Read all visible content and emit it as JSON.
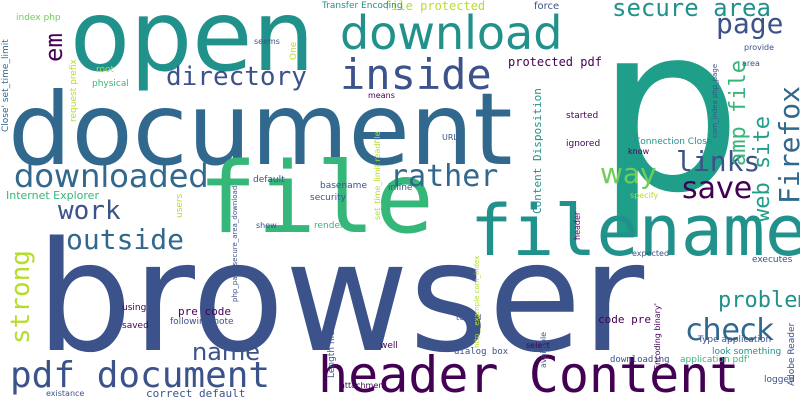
{
  "background": "#ffffff",
  "palette": {
    "dark_purple": "#440154",
    "indigo": "#3b528b",
    "slate_blue": "#31688e",
    "blue_teal": "#21918c",
    "teal": "#1f9e89",
    "green": "#35b779",
    "light_green": "#6ece58",
    "yellow_green": "#b5de2b",
    "gray_teal": "#8ab4b0"
  },
  "words": [
    {
      "text": "browser",
      "color": "#3b528b"
    },
    {
      "text": "document",
      "color": "#31688e"
    },
    {
      "text": "p",
      "color": "#1f9e89"
    },
    {
      "text": "open",
      "color": "#21918c"
    },
    {
      "text": "file",
      "color": "#35b779"
    },
    {
      "text": "filename",
      "color": "#21918c"
    },
    {
      "text": "header Content",
      "color": "#440154"
    },
    {
      "text": "download",
      "color": "#21918c"
    },
    {
      "text": "inside",
      "color": "#3b528b"
    },
    {
      "text": "pdf document",
      "color": "#3b528b"
    },
    {
      "text": "directory",
      "color": "#3b528b"
    },
    {
      "text": "downloaded",
      "color": "#31688e"
    },
    {
      "text": "outside",
      "color": "#31688e"
    },
    {
      "text": "save",
      "color": "#440154"
    },
    {
      "text": "rather",
      "color": "#31688e"
    },
    {
      "text": "links",
      "color": "#3b528b"
    },
    {
      "text": "check",
      "color": "#31688e"
    },
    {
      "text": "way",
      "color": "#6ece58"
    },
    {
      "text": "page",
      "color": "#3b528b"
    },
    {
      "text": "work",
      "color": "#3b528b"
    },
    {
      "text": "secure area",
      "color": "#21918c"
    },
    {
      "text": "Firefox",
      "color": "#31688e"
    },
    {
      "text": "web site",
      "color": "#1f9e89"
    },
    {
      "text": "amp file",
      "color": "#35b779"
    },
    {
      "text": "em",
      "color": "#440154"
    },
    {
      "text": "strong",
      "color": "#b5de2b"
    },
    {
      "text": "name",
      "color": "#3b528b"
    },
    {
      "text": "problem",
      "color": "#21918c"
    },
    {
      "text": "file protected",
      "color": "#b5de2b"
    },
    {
      "text": "protected pdf",
      "color": "#440154"
    },
    {
      "text": "Transfer Encoding",
      "color": "#21918c"
    },
    {
      "text": "force",
      "color": "#3b528b"
    },
    {
      "text": "Content Disposition",
      "color": "#21918c"
    },
    {
      "text": "index php",
      "color": "#6ece58"
    },
    {
      "text": "Close' set_time_limit",
      "color": "#31688e"
    },
    {
      "text": "request prefix",
      "color": "#b5de2b"
    },
    {
      "text": "Internet Explorer",
      "color": "#35b779"
    },
    {
      "text": "default",
      "color": "#3b528b"
    },
    {
      "text": "basename",
      "color": "#3b528b"
    },
    {
      "text": "security",
      "color": "#3b528b"
    },
    {
      "text": "inline",
      "color": "#3b528b"
    },
    {
      "text": "Length filesize",
      "color": "#3b528b"
    },
    {
      "text": "pre code",
      "color": "#440154"
    },
    {
      "text": "code pre",
      "color": "#440154"
    },
    {
      "text": "correct default",
      "color": "#3b528b"
    },
    {
      "text": "following note",
      "color": "#3b528b"
    },
    {
      "text": "dialog box",
      "color": "#3b528b"
    },
    {
      "text": "Connection Close",
      "color": "#21918c"
    },
    {
      "text": "Adobe Reader",
      "color": "#3b528b"
    },
    {
      "text": "Type application",
      "color": "#3b528b"
    },
    {
      "text": "application pdf'",
      "color": "#35b779"
    },
    {
      "text": "look something",
      "color": "#21918c"
    },
    {
      "text": "downloading",
      "color": "#3b528b"
    },
    {
      "text": "executes",
      "color": "#3b528b"
    },
    {
      "text": "logged",
      "color": "#3b528b"
    },
    {
      "text": "started",
      "color": "#440154"
    },
    {
      "text": "ignored",
      "color": "#440154"
    },
    {
      "text": "know",
      "color": "#440154"
    },
    {
      "text": "means",
      "color": "#440154"
    },
    {
      "text": "seems",
      "color": "#3b528b"
    },
    {
      "text": "One",
      "color": "#b5de2b"
    },
    {
      "text": "root",
      "color": "#b5de2b"
    },
    {
      "text": "physical",
      "color": "#35b779"
    },
    {
      "text": "provide",
      "color": "#3b528b"
    },
    {
      "text": "area",
      "color": "#3b528b"
    },
    {
      "text": "users",
      "color": "#b5de2b"
    },
    {
      "text": "using",
      "color": "#440154"
    },
    {
      "text": "saved",
      "color": "#440154"
    },
    {
      "text": "show",
      "color": "#3b528b"
    },
    {
      "text": "render",
      "color": "#35b779"
    },
    {
      "text": "well",
      "color": "#440154"
    },
    {
      "text": "select",
      "color": "#440154"
    },
    {
      "text": "tested",
      "color": "#3b528b"
    },
    {
      "text": "attachment",
      "color": "#440154"
    },
    {
      "text": "existance",
      "color": "#3b528b"
    },
    {
      "text": "URL",
      "color": "#3b528b"
    },
    {
      "text": "specify",
      "color": "#b5de2b"
    },
    {
      "text": "expected",
      "color": "#3b528b"
    },
    {
      "text": "available",
      "color": "#3b528b"
    },
    {
      "text": "header",
      "color": "#440154"
    },
    {
      "text": "Encoding binary'",
      "color": "#440154"
    },
    {
      "text": "set_time_limit readfile",
      "color": "#b5de2b"
    },
    {
      "text": "com_index php_page",
      "color": "#3b528b"
    },
    {
      "text": "http _ example com_index",
      "color": "#b5de2b"
    },
    {
      "text": "php_page secure_area_download",
      "color": "#3b528b"
    }
  ]
}
